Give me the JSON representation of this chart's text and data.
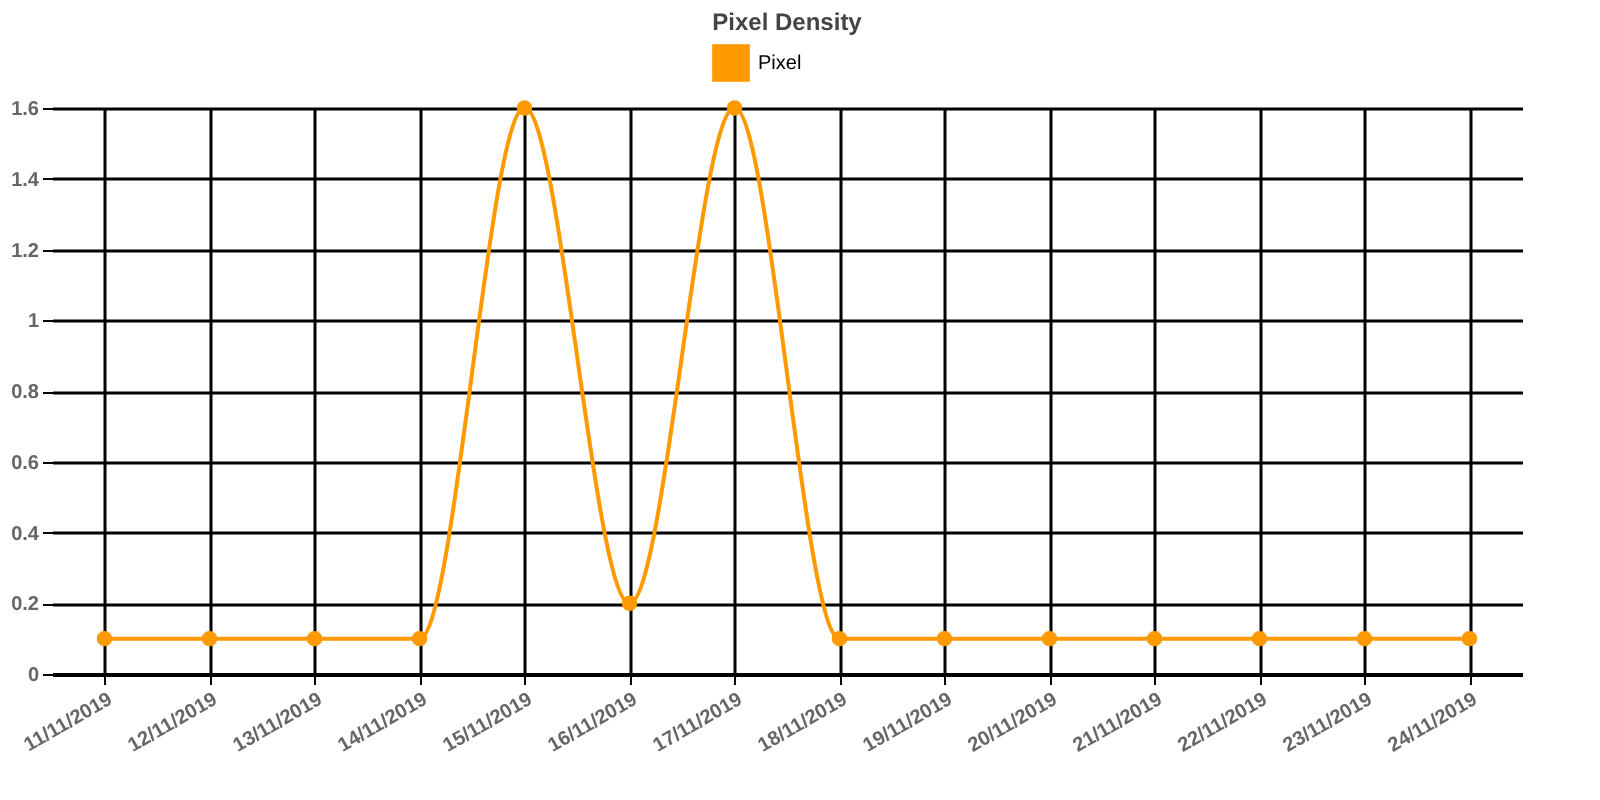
{
  "chart_data": {
    "type": "line",
    "title": "Pixel Density",
    "categories": [
      "11/11/2019",
      "12/11/2019",
      "13/11/2019",
      "14/11/2019",
      "15/11/2019",
      "16/11/2019",
      "17/11/2019",
      "18/11/2019",
      "19/11/2019",
      "20/11/2019",
      "21/11/2019",
      "22/11/2019",
      "23/11/2019",
      "24/11/2019"
    ],
    "series": [
      {
        "name": "Pixel",
        "color": "#ff9900",
        "values": [
          0.1,
          0.1,
          0.1,
          0.1,
          1.6,
          0.2,
          1.6,
          0.1,
          0.1,
          0.1,
          0.1,
          0.1,
          0.1,
          0.1
        ]
      }
    ],
    "ylim": [
      0,
      1.6
    ],
    "yticks": [
      0,
      0.2,
      0.4,
      0.6,
      0.8,
      1,
      1.2,
      1.4,
      1.6
    ],
    "grid": true,
    "legend": "top",
    "marker": "circle"
  }
}
